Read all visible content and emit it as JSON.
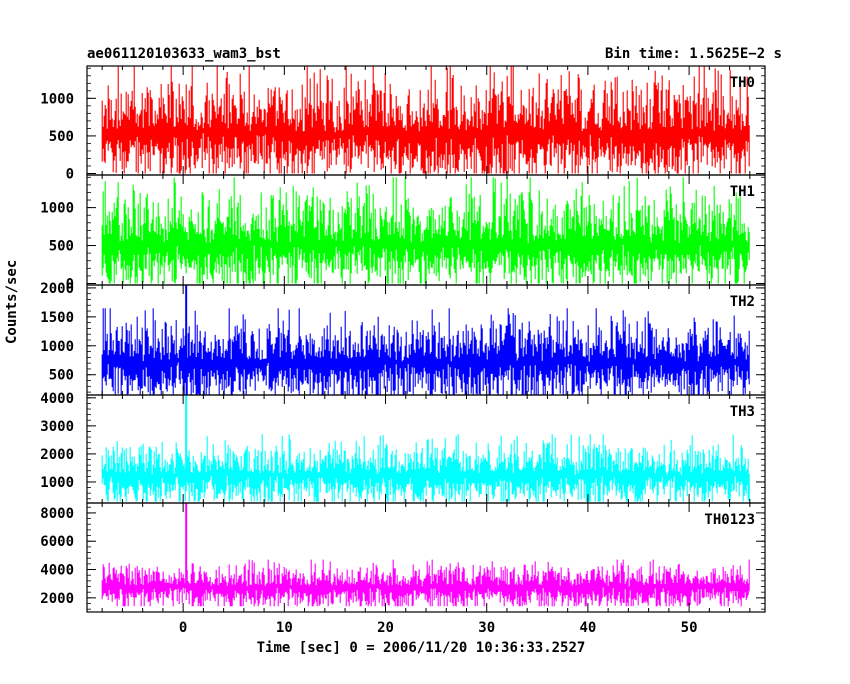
{
  "header": {
    "title_left": "ae061120103633_wam3_bst",
    "title_right": "Bin time: 1.5625E−2 s"
  },
  "axes": {
    "xlabel": "Time [sec] 0 = 2006/11/20 10:36:33.2527",
    "ylabel": "Counts/sec"
  },
  "chart_data": {
    "type": "line",
    "title": "ae061120103633_wam3_bst",
    "bin_time": "Bin time: 1.5625E−2 s",
    "xlabel": "Time [sec] 0 = 2006/11/20 10:36:33.2527",
    "ylabel": "Counts/sec",
    "xlim": [
      -9.5,
      57.5
    ],
    "x_range_data": [
      -8,
      56
    ],
    "xticks": [
      0,
      10,
      20,
      30,
      40,
      50
    ],
    "panels": [
      {
        "name": "TH0",
        "color": "#ff0000",
        "ylim": [
          -20,
          1430
        ],
        "yticks": [
          0,
          500,
          1000
        ],
        "mean": 540,
        "noise_low": 0,
        "noise_high": 1430,
        "spikes": []
      },
      {
        "name": "TH1",
        "color": "#00ff00",
        "ylim": [
          -20,
          1430
        ],
        "yticks": [
          0,
          500,
          1000
        ],
        "mean": 520,
        "noise_low": 0,
        "noise_high": 1400,
        "spikes": []
      },
      {
        "name": "TH2",
        "color": "#0000ff",
        "ylim": [
          150,
          2050
        ],
        "yticks": [
          500,
          1000,
          1500,
          2000
        ],
        "mean": 720,
        "noise_low": 150,
        "noise_high": 1650,
        "spikes": [
          {
            "x": 0.3,
            "y": 2050
          }
        ]
      },
      {
        "name": "TH3",
        "color": "#00ffff",
        "ylim": [
          250,
          4100
        ],
        "yticks": [
          1000,
          2000,
          3000,
          4000
        ],
        "mean": 1250,
        "noise_low": 300,
        "noise_high": 2700,
        "spikes": [
          {
            "x": 0.3,
            "y": 4100
          }
        ]
      },
      {
        "name": "TH0123",
        "color": "#ff00ff",
        "ylim": [
          1000,
          8700
        ],
        "yticks": [
          2000,
          4000,
          6000,
          8000
        ],
        "mean": 2800,
        "noise_low": 1400,
        "noise_high": 4700,
        "spikes": [
          {
            "x": 0.3,
            "y": 8700
          }
        ]
      }
    ]
  }
}
